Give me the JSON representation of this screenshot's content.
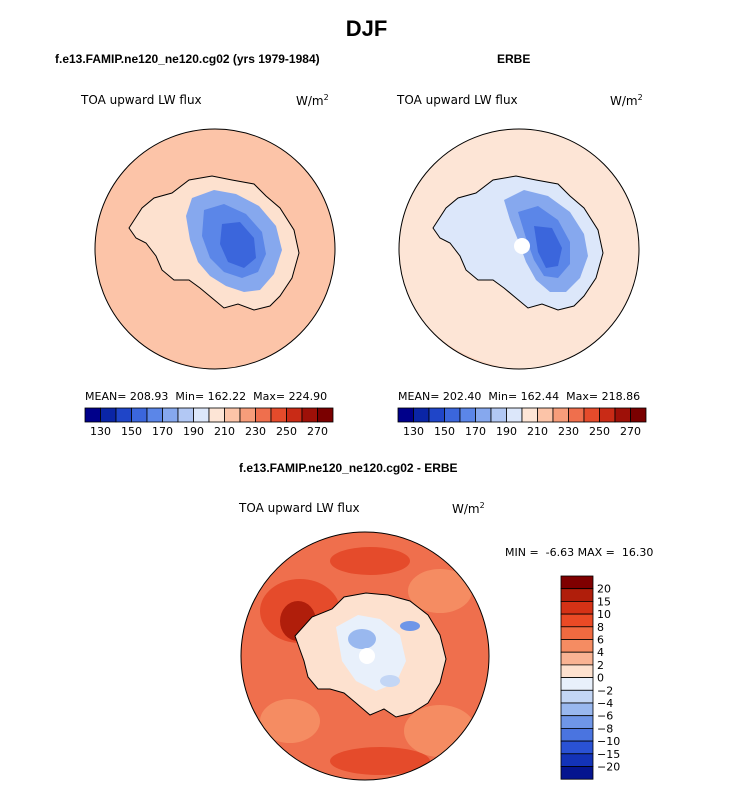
{
  "page": {
    "title": "DJF"
  },
  "panels": [
    {
      "title": "f.e13.FAMIP.ne120_ne120.cg02 (yrs 1979-1984)",
      "variable": "TOA upward LW flux",
      "units_base": "W/m",
      "units_exp": "2",
      "stats": {
        "mean_label": "MEAN=",
        "mean": "208.93",
        "min_label": "Min=",
        "min": "162.22",
        "max_label": "Max=",
        "max": "224.90"
      }
    },
    {
      "title": "ERBE",
      "variable": "TOA upward LW flux",
      "units_base": "W/m",
      "units_exp": "2",
      "stats": {
        "mean_label": "MEAN=",
        "mean": "202.40",
        "min_label": "Min=",
        "min": "162.44",
        "max_label": "Max=",
        "max": "218.86"
      }
    },
    {
      "title": "f.e13.FAMIP.ne120_ne120.cg02 - ERBE",
      "variable": "TOA upward LW flux",
      "units_base": "W/m",
      "units_exp": "2",
      "minmax_text": "MIN =  -6.63 MAX =  16.30"
    }
  ],
  "chart_data": [
    {
      "type": "heatmap",
      "projection": "south polar stereographic",
      "title": "f.e13.FAMIP.ne120_ne120.cg02 (yrs 1979-1984)",
      "variable": "TOA upward LW flux",
      "units": "W/m^2",
      "mean": 208.93,
      "min": 162.22,
      "max": 224.9,
      "colorbar_levels": [
        130,
        140,
        150,
        160,
        170,
        180,
        190,
        200,
        210,
        220,
        230,
        240,
        250,
        260,
        270
      ],
      "colorbar_tick_labels": [
        "130",
        "150",
        "170",
        "190",
        "210",
        "230",
        "250",
        "270"
      ],
      "colors": [
        "#00008a",
        "#0a25a6",
        "#1f45c8",
        "#3b66dc",
        "#5b86e8",
        "#86a8ee",
        "#b2c8f4",
        "#dce7fa",
        "#fde5d6",
        "#fcc4a8",
        "#f79d7a",
        "#ef6f4d",
        "#e54b2b",
        "#c92b16",
        "#9e1008",
        "#7a0000"
      ],
      "regions": {
        "ocean_level": "210-220",
        "antarctic_coast_level": "200-210",
        "plateau_min_level": "160-170"
      }
    },
    {
      "type": "heatmap",
      "projection": "south polar stereographic",
      "title": "ERBE",
      "variable": "TOA upward LW flux",
      "units": "W/m^2",
      "mean": 202.4,
      "min": 162.44,
      "max": 218.86,
      "colorbar_levels": [
        130,
        140,
        150,
        160,
        170,
        180,
        190,
        200,
        210,
        220,
        230,
        240,
        250,
        260,
        270
      ],
      "colorbar_tick_labels": [
        "130",
        "150",
        "170",
        "190",
        "210",
        "230",
        "250",
        "270"
      ],
      "colors": [
        "#00008a",
        "#0a25a6",
        "#1f45c8",
        "#3b66dc",
        "#5b86e8",
        "#86a8ee",
        "#b2c8f4",
        "#dce7fa",
        "#fde5d6",
        "#fcc4a8",
        "#f79d7a",
        "#ef6f4d",
        "#e54b2b",
        "#c92b16",
        "#9e1008",
        "#7a0000"
      ],
      "regions": {
        "ocean_level": "200-210",
        "antarctic_coast_level": "190-200",
        "plateau_min_level": "160-170",
        "pole": "no data"
      }
    },
    {
      "type": "heatmap",
      "projection": "south polar stereographic",
      "title": "f.e13.FAMIP.ne120_ne120.cg02 - ERBE",
      "variable": "TOA upward LW flux",
      "units": "W/m^2",
      "min": -6.63,
      "max": 16.3,
      "colorbar_levels": [
        -20,
        -15,
        -10,
        -8,
        -6,
        -4,
        -2,
        0,
        2,
        4,
        6,
        8,
        10,
        15,
        20
      ],
      "colorbar_tick_labels": [
        "20",
        "15",
        "10",
        "8",
        "6",
        "4",
        "2",
        "0",
        "−2",
        "−4",
        "−6",
        "−8",
        "−10",
        "−15",
        "−20"
      ],
      "colors": [
        "#7f0000",
        "#b01e0b",
        "#d53216",
        "#ea4a25",
        "#f06a40",
        "#f58c62",
        "#f9b393",
        "#fde1cf",
        "#e8f0fb",
        "#c3d6f5",
        "#99b8ef",
        "#6f96e8",
        "#4a74e0",
        "#2a52d4",
        "#1333b8",
        "#05158f"
      ],
      "regions": {
        "ocean_level": "4-8",
        "antarctic_interior_level": "-2-2",
        "pole": "no data"
      }
    }
  ]
}
